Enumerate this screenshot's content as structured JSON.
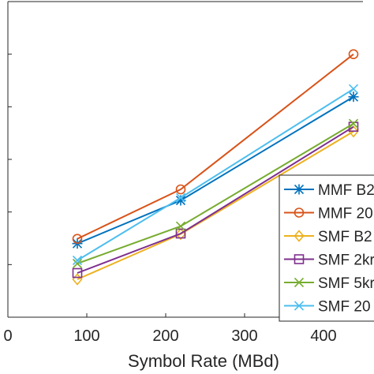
{
  "chart_data": {
    "type": "line",
    "title": "",
    "xlabel": "Symbol Rate (MBd)",
    "ylabel": "",
    "xlim": [
      0,
      450
    ],
    "ylim": [
      0,
      6
    ],
    "x_ticks": [
      0,
      100,
      200,
      300,
      400
    ],
    "x_tick_labels": [
      "0",
      "100",
      "200",
      "300",
      "400"
    ],
    "y_ticks": [
      1,
      2,
      3,
      4,
      5
    ],
    "grid": false,
    "legend_position": "right",
    "x": [
      88,
      219,
      438
    ],
    "series": [
      {
        "name": "MMF B2",
        "color": "#0072BD",
        "marker": "asterisk",
        "values": [
          1.4,
          2.22,
          4.19
        ]
      },
      {
        "name": "MMF 20",
        "color": "#D95319",
        "marker": "circle",
        "values": [
          1.49,
          2.43,
          5.0
        ]
      },
      {
        "name": "SMF B2",
        "color": "#EDB120",
        "marker": "diamond",
        "values": [
          0.72,
          1.58,
          3.53
        ]
      },
      {
        "name": "SMF 2kr",
        "color": "#7E2F8E",
        "marker": "square",
        "values": [
          0.84,
          1.59,
          3.62
        ]
      },
      {
        "name": "SMF 5kr",
        "color": "#77AC30",
        "marker": "x",
        "values": [
          1.02,
          1.73,
          3.68
        ]
      },
      {
        "name": "SMF 20",
        "color": "#4DBEEE",
        "marker": "x",
        "values": [
          1.08,
          2.27,
          4.34
        ]
      }
    ]
  }
}
